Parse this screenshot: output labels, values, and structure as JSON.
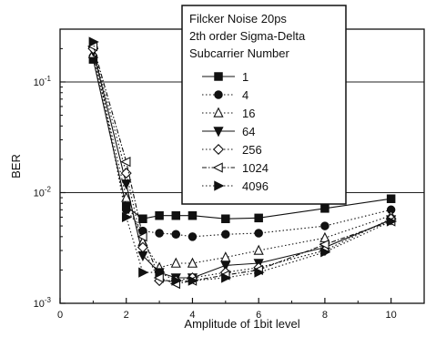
{
  "chart_data": {
    "type": "line",
    "xlabel": "Amplitude of 1bit level",
    "ylabel": "BER",
    "xlim": [
      0,
      11
    ],
    "ylim": [
      0.001,
      0.3
    ],
    "yscale": "log",
    "grid": "horizontal lines at decades",
    "legend_placement": "top-right",
    "legend_title": [
      "Filcker Noise 20ps",
      "2th order Sigma-Delta",
      "Subcarrier Number"
    ],
    "x_ticks": [
      0,
      2,
      4,
      6,
      8,
      10
    ],
    "y_ticks": [
      {
        "value": 0.001,
        "label": "10",
        "exp": "-3"
      },
      {
        "value": 0.01,
        "label": "10",
        "exp": "-2"
      },
      {
        "value": 0.1,
        "label": "10",
        "exp": "-1"
      }
    ],
    "series": [
      {
        "name": "1",
        "marker": "square-filled",
        "line": "solid",
        "x": [
          1,
          2,
          2.5,
          3,
          3.5,
          4,
          5,
          6,
          8,
          10
        ],
        "y": [
          0.16,
          0.0075,
          0.0058,
          0.0062,
          0.0062,
          0.0062,
          0.0058,
          0.0059,
          0.0072,
          0.0088
        ]
      },
      {
        "name": "4",
        "marker": "circle-filled",
        "line": "dotted",
        "x": [
          1,
          2,
          2.5,
          3,
          3.5,
          4,
          5,
          6,
          8,
          10
        ],
        "y": [
          0.17,
          0.007,
          0.0045,
          0.0043,
          0.0042,
          0.004,
          0.0042,
          0.0043,
          0.005,
          0.007
        ]
      },
      {
        "name": "16",
        "marker": "triangle-up-open",
        "line": "dotted",
        "x": [
          1,
          2,
          2.5,
          3,
          3.5,
          4,
          5,
          6,
          8,
          10
        ],
        "y": [
          0.18,
          0.009,
          0.0036,
          0.0021,
          0.0023,
          0.0023,
          0.0026,
          0.003,
          0.0039,
          0.0062
        ]
      },
      {
        "name": "64",
        "marker": "triangle-down-filled",
        "line": "solid",
        "x": [
          1,
          2,
          2.5,
          3,
          3.5,
          4,
          5,
          6,
          8,
          10
        ],
        "y": [
          0.19,
          0.012,
          0.0027,
          0.0019,
          0.0017,
          0.0017,
          0.0022,
          0.0023,
          0.0032,
          0.0057
        ]
      },
      {
        "name": "256",
        "marker": "diamond-open",
        "line": "dotted",
        "x": [
          1,
          2,
          2.5,
          3,
          3.5,
          4,
          5,
          6,
          8,
          10
        ],
        "y": [
          0.2,
          0.015,
          0.0032,
          0.0016,
          0.0016,
          0.0017,
          0.0019,
          0.0021,
          0.003,
          0.0058
        ]
      },
      {
        "name": "1024",
        "marker": "triangle-left-open",
        "line": "dash-dot",
        "x": [
          1,
          2,
          2.5,
          3,
          3.5,
          4,
          5,
          6,
          8,
          10
        ],
        "y": [
          0.21,
          0.019,
          0.004,
          0.0017,
          0.0015,
          0.0016,
          0.0018,
          0.002,
          0.0034,
          0.0055
        ]
      },
      {
        "name": "4096",
        "marker": "triangle-right-filled",
        "line": "dotted",
        "x": [
          1,
          2,
          2.5,
          3,
          3.5,
          4,
          5,
          6,
          8,
          10
        ],
        "y": [
          0.23,
          0.006,
          0.0019,
          0.0019,
          0.0016,
          0.0016,
          0.0017,
          0.0019,
          0.0029,
          0.0055
        ]
      }
    ]
  }
}
